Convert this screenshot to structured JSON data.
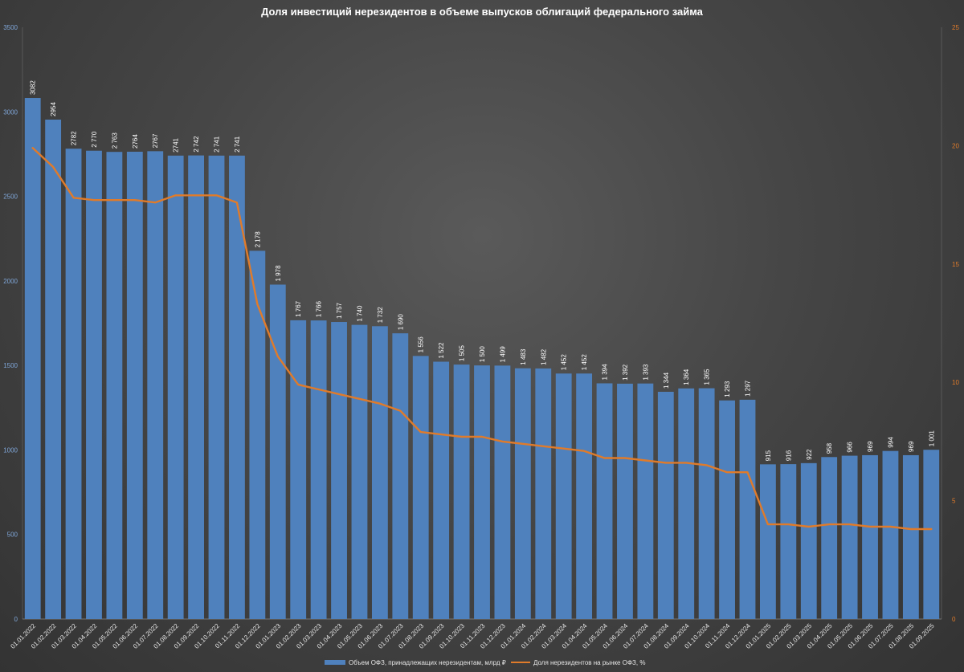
{
  "chart_data": {
    "type": "bar",
    "title": "Доля инвестиций нерезидентов в объеме выпусков облигаций федерального займа",
    "categories": [
      "01.01.2022",
      "01.02.2022",
      "01.03.2022",
      "01.04.2022",
      "01.05.2022",
      "01.06.2022",
      "01.07.2022",
      "01.08.2022",
      "01.09.2022",
      "01.10.2022",
      "01.11.2022",
      "01.12.2022",
      "01.01.2023",
      "01.02.2023",
      "01.03.2023",
      "01.04.2023",
      "01.05.2023",
      "01.06.2023",
      "01.07.2023",
      "01.08.2023",
      "01.09.2023",
      "01.10.2023",
      "01.11.2023",
      "01.12.2023",
      "01.01.2024",
      "01.02.2024",
      "01.03.2024",
      "01.04.2024",
      "01.05.2024",
      "01.06.2024",
      "01.07.2024",
      "01.08.2024",
      "01.09.2024",
      "01.10.2024",
      "01.11.2024",
      "01.12.2024",
      "01.01.2025",
      "01.02.2025",
      "01.03.2025",
      "01.04.2025",
      "01.05.2025",
      "01.06.2025",
      "01.07.2025",
      "01.08.2025",
      "01.09.2025"
    ],
    "series": [
      {
        "name": "Объем ОФЗ, принадлежащих нерезидентам, млрд ₽",
        "type": "bar",
        "axis": "left",
        "color": "#4f81bd",
        "values": [
          3082,
          2954,
          2782,
          2770,
          2763,
          2764,
          2767,
          2741,
          2742,
          2741,
          2741,
          2178,
          1978,
          1767,
          1766,
          1757,
          1740,
          1732,
          1690,
          1556,
          1522,
          1505,
          1500,
          1499,
          1483,
          1482,
          1452,
          1452,
          1394,
          1392,
          1393,
          1344,
          1364,
          1365,
          1293,
          1297,
          915,
          916,
          922,
          958,
          966,
          969,
          994,
          969,
          1001
        ],
        "labels": [
          "3082",
          "2954",
          "2782",
          "2 770",
          "2 763",
          "2764",
          "2767",
          "2741",
          "2 742",
          "2 741",
          "2 741",
          "2 178",
          "1 978",
          "1 767",
          "1 766",
          "1 757",
          "1 740",
          "1 732",
          "1 690",
          "1 556",
          "1 522",
          "1 505",
          "1 500",
          "1 499",
          "1 483",
          "1 482",
          "1 452",
          "1 452",
          "1 394",
          "1 392",
          "1 393",
          "1 344",
          "1 364",
          "1 365",
          "1 293",
          "1 297",
          "915",
          "916",
          "922",
          "958",
          "966",
          "969",
          "994",
          "969",
          "1 001"
        ]
      },
      {
        "name": "Доля нерезидентов на рынке ОФЗ, %",
        "type": "line",
        "axis": "right",
        "color": "#e07b2a",
        "values": [
          19.9,
          19.1,
          17.8,
          17.7,
          17.7,
          17.7,
          17.6,
          17.9,
          17.9,
          17.9,
          17.6,
          13.3,
          11.1,
          9.9,
          9.7,
          9.5,
          9.3,
          9.1,
          8.8,
          7.9,
          7.8,
          7.7,
          7.7,
          7.5,
          7.4,
          7.3,
          7.2,
          7.1,
          6.8,
          6.8,
          6.7,
          6.6,
          6.6,
          6.5,
          6.2,
          6.2,
          4.0,
          4.0,
          3.9,
          4.0,
          4.0,
          3.9,
          3.9,
          3.8,
          3.8
        ]
      }
    ],
    "y_left": {
      "min": 0,
      "max": 3500,
      "ticks": [
        0,
        500,
        1000,
        1500,
        2000,
        2500,
        3000,
        3500
      ]
    },
    "y_right": {
      "min": 0,
      "max": 25,
      "ticks": [
        0,
        5,
        10,
        15,
        20,
        25
      ]
    },
    "grid": false,
    "legend": "bottom"
  }
}
